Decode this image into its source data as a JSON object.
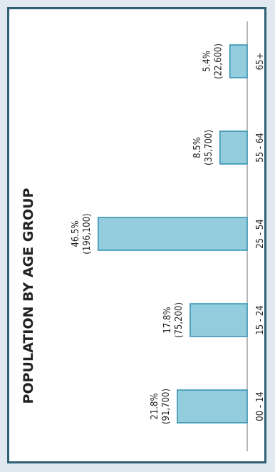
{
  "chart_data": {
    "type": "bar",
    "orientation": "rotated",
    "title": "POPULATION BY AGE GROUP",
    "categories": [
      "00 - 14",
      "15 - 24",
      "25 - 54",
      "55 - 64",
      "65+"
    ],
    "values": [
      21.8,
      17.8,
      46.5,
      8.5,
      5.4
    ],
    "counts": [
      "(91,700)",
      "(75,200)",
      "(196,100)",
      "(35,700)",
      "(22,600)"
    ],
    "value_labels": [
      "21.8%",
      "17.8%",
      "46.5%",
      "8.5%",
      "5.4%"
    ],
    "ylim": [
      0,
      60
    ],
    "grid": false,
    "legend": "none",
    "colors": {
      "bar_fill": "#93cddd",
      "bar_stroke": "#2f8fae",
      "frame": "#2e5f73"
    }
  }
}
